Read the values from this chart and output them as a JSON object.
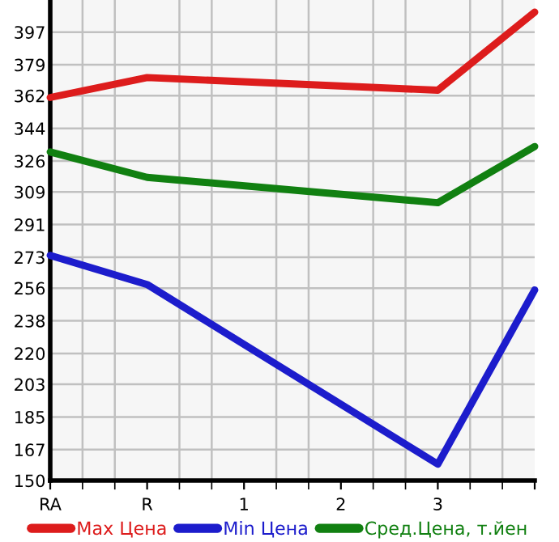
{
  "chart_data": {
    "type": "line",
    "categories": [
      "RA",
      "R",
      "1",
      "2",
      "3",
      null
    ],
    "series": [
      {
        "name": "Max Цена",
        "color": "#dd1c1c",
        "values": [
          361,
          372,
          null,
          null,
          365,
          408
        ]
      },
      {
        "name": "Min Цена",
        "color": "#1c1ccc",
        "values": [
          274,
          258,
          null,
          null,
          159,
          255
        ]
      },
      {
        "name": "Сред.Цена, т.йен",
        "color": "#118011",
        "values": [
          331,
          317,
          null,
          null,
          303,
          334
        ]
      }
    ],
    "ylim": [
      150,
      414.7
    ],
    "yticks": [
      150,
      167,
      185,
      203,
      220,
      238,
      256,
      273,
      291,
      309,
      326,
      344,
      362,
      379,
      397
    ],
    "grid": true,
    "legend": "bottom",
    "marker": "none",
    "line_style": "solid"
  }
}
